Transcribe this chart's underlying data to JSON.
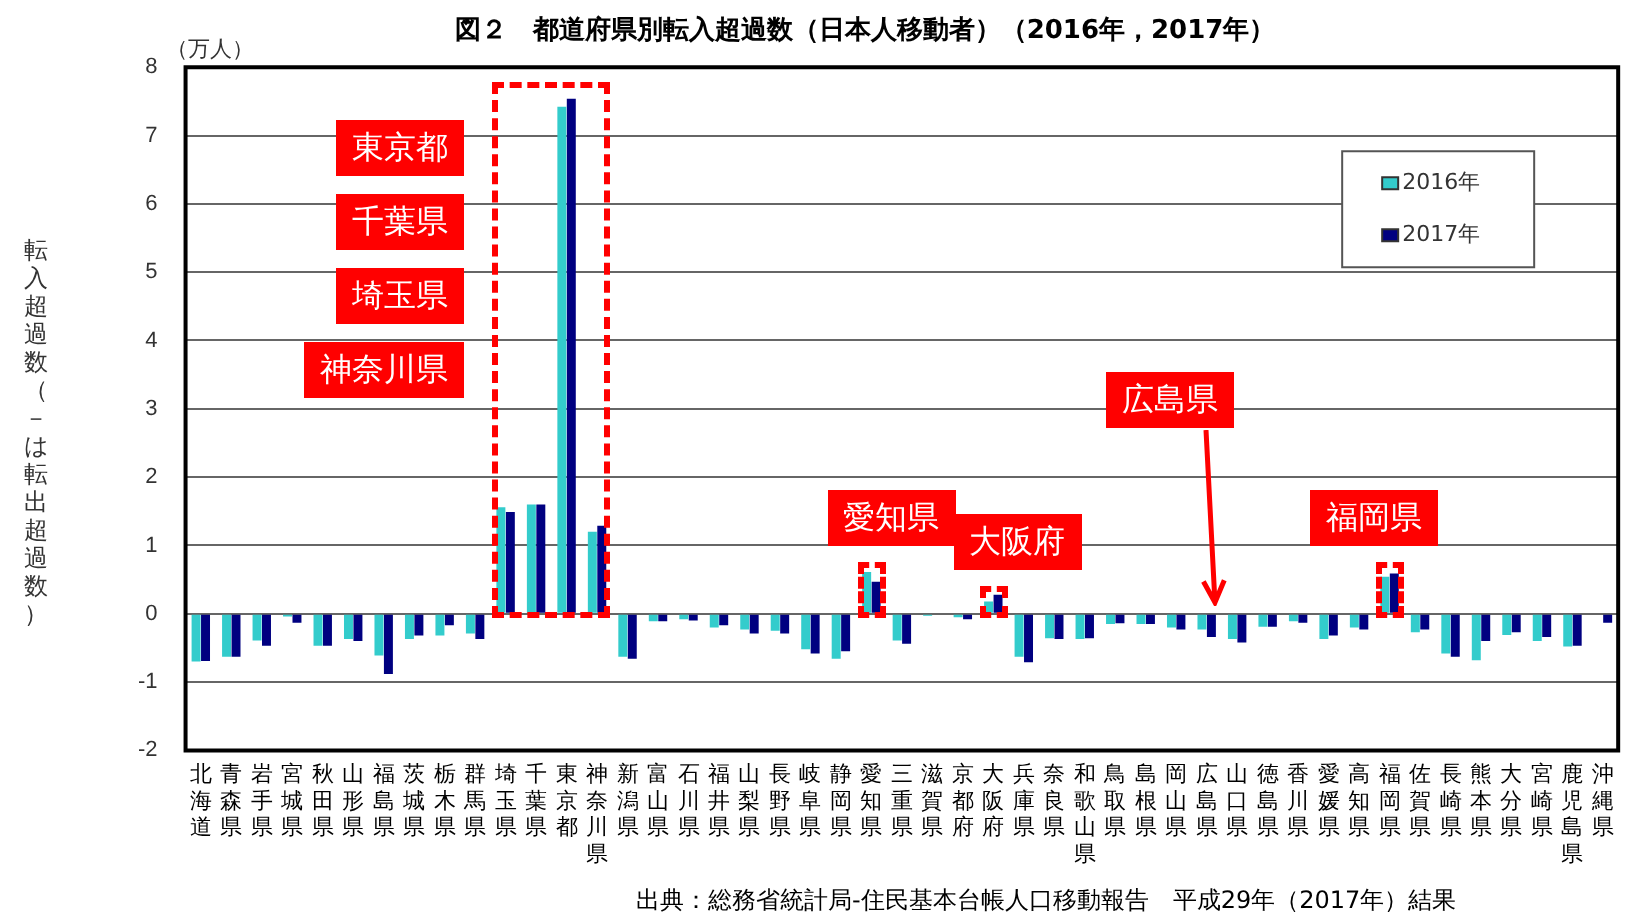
{
  "chart_data": {
    "type": "bar",
    "title": "図２　都道府県別転入超過数（日本人移動者）（2016年，2017年）",
    "ylabel": "転入超過数（－は転出超過数）",
    "categories": [
      "北海道",
      "青森県",
      "岩手県",
      "宮城県",
      "秋田県",
      "山形県",
      "福島県",
      "茨城県",
      "栃木県",
      "群馬県",
      "埼玉県",
      "千葉県",
      "東京都",
      "神奈川県",
      "新潟県",
      "富山県",
      "石川県",
      "福井県",
      "山梨県",
      "長野県",
      "岐阜県",
      "静岡県",
      "愛知県",
      "三重県",
      "滋賀県",
      "京都府",
      "大阪府",
      "兵庫県",
      "奈良県",
      "和歌山県",
      "鳥取県",
      "島根県",
      "岡山県",
      "広島県",
      "山口県",
      "徳島県",
      "香川県",
      "愛媛県",
      "高知県",
      "福岡県",
      "佐賀県",
      "長崎県",
      "熊本県",
      "大分県",
      "宮崎県",
      "鹿児島県",
      "沖縄県"
    ],
    "series": [
      {
        "name": "2016年",
        "color": "#33cccc",
        "values": [
          -0.7,
          -0.63,
          -0.39,
          -0.04,
          -0.47,
          -0.37,
          -0.61,
          -0.37,
          -0.32,
          -0.29,
          1.56,
          1.6,
          7.42,
          1.2,
          -0.63,
          -0.11,
          -0.08,
          -0.2,
          -0.23,
          -0.25,
          -0.52,
          -0.66,
          0.61,
          -0.39,
          -0.03,
          -0.05,
          0.18,
          -0.63,
          -0.36,
          -0.37,
          -0.15,
          -0.15,
          -0.2,
          -0.23,
          -0.37,
          -0.19,
          -0.11,
          -0.37,
          -0.2,
          0.54,
          -0.27,
          -0.58,
          -0.68,
          -0.31,
          -0.4,
          -0.48,
          null
        ]
      },
      {
        "name": "2017年",
        "color": "#000080",
        "values": [
          -0.69,
          -0.63,
          -0.47,
          -0.13,
          -0.47,
          -0.4,
          -0.88,
          -0.32,
          -0.17,
          -0.37,
          1.49,
          1.6,
          7.54,
          1.29,
          -0.66,
          -0.11,
          -0.1,
          -0.17,
          -0.29,
          -0.29,
          -0.58,
          -0.55,
          0.47,
          -0.44,
          null,
          -0.08,
          0.28,
          -0.71,
          -0.37,
          -0.36,
          -0.14,
          -0.15,
          -0.23,
          -0.34,
          -0.42,
          -0.19,
          -0.13,
          -0.32,
          -0.23,
          0.59,
          -0.23,
          -0.63,
          -0.4,
          -0.27,
          -0.34,
          -0.47,
          -0.13
        ]
      }
    ],
    "ylim": [
      -2,
      8
    ],
    "yticks": [
      -2,
      -1,
      0,
      1,
      2,
      3,
      4,
      5,
      6,
      7,
      8
    ],
    "grid": "y",
    "legend": "top right",
    "annotations": [
      "（万人）",
      "東京都",
      "千葉県",
      "埼玉県",
      "神奈川県",
      "愛知県",
      "大阪府",
      "広島県",
      "福岡県",
      "出典：総務省統計局-住民基本台帳人口移動報告　平成29年（2017年）結果"
    ]
  }
}
